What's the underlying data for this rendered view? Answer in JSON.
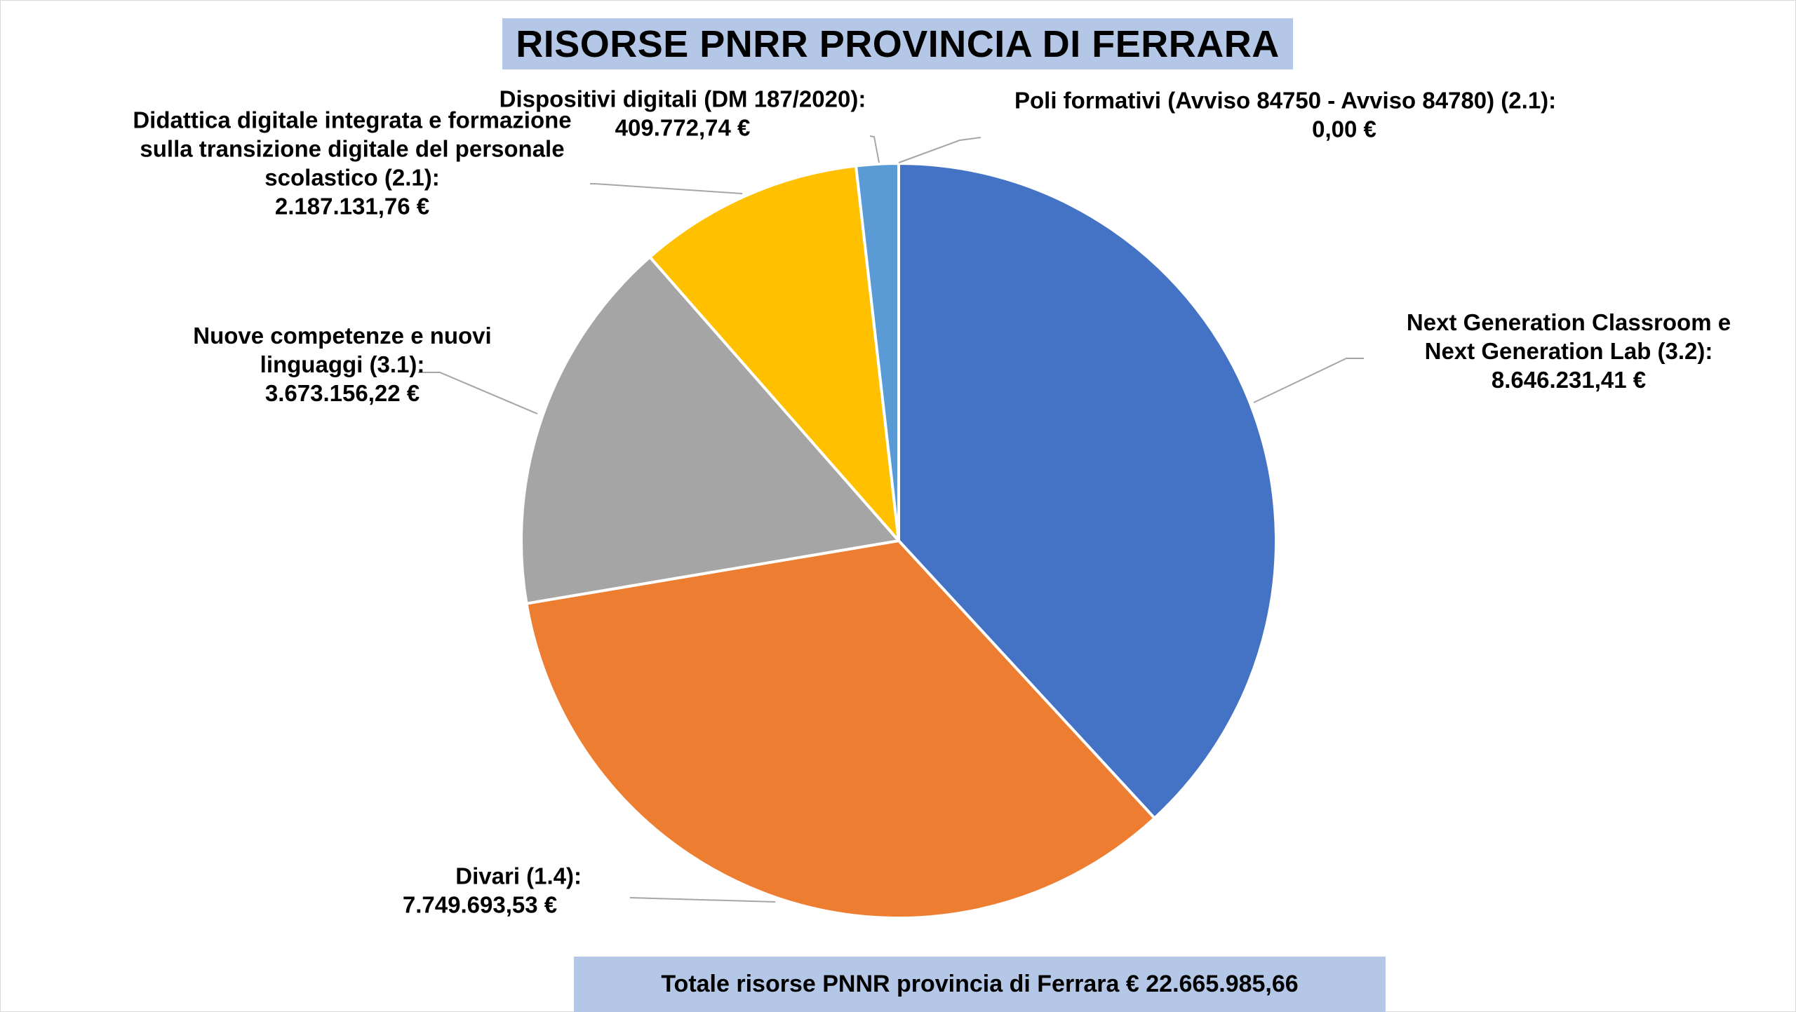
{
  "chart_data": {
    "type": "pie",
    "title": "RISORSE PNRR PROVINCIA DI FERRARA",
    "footer": "Totale risorse PNNR provincia di Ferrara € 22.665.985,66",
    "slices": [
      {
        "name": "Poli formativi (Avviso 84750 - Avviso 84780) (2.1):",
        "value": 0.0,
        "value_label": "0,00 €",
        "color": "#70ad47"
      },
      {
        "name": "Next Generation Classroom e Next Generation Lab (3.2):",
        "value": 8646231.41,
        "value_label": "8.646.231,41 €",
        "color": "#4472c4"
      },
      {
        "name": "Divari (1.4):",
        "value": 7749693.53,
        "value_label": "7.749.693,53 €",
        "color": "#ed7d31"
      },
      {
        "name": "Nuove competenze e nuovi linguaggi (3.1):",
        "value": 3673156.22,
        "value_label": "3.673.156,22 €",
        "color": "#a5a5a5"
      },
      {
        "name": "Didattica digitale integrata e formazione sulla transizione digitale del personale scolastico (2.1):",
        "value": 2187131.76,
        "value_label": "2.187.131,76 €",
        "color": "#ffc000"
      },
      {
        "name": "Dispositivi digitali (DM 187/2020):",
        "value": 409772.74,
        "value_label": "409.772,74 €",
        "color": "#5b9bd5"
      }
    ],
    "labels": [
      {
        "lines": [
          "Poli formativi (Avviso 84750 - Avviso 84780) (2.1):",
          "0,00 €"
        ]
      },
      {
        "lines": [
          "Next Generation Classroom e",
          "Next Generation Lab (3.2):",
          "8.646.231,41 €"
        ]
      },
      {
        "lines": [
          "Divari (1.4):",
          "7.749.693,53 €"
        ]
      },
      {
        "lines": [
          "Nuove competenze e nuovi",
          "linguaggi (3.1):",
          "3.673.156,22 €"
        ]
      },
      {
        "lines": [
          "Didattica digitale integrata e formazione",
          "sulla transizione digitale del personale",
          "scolastico (2.1):",
          "2.187.131,76 €"
        ]
      },
      {
        "lines": [
          "Dispositivi digitali (DM 187/2020):",
          "409.772,74 €"
        ]
      }
    ],
    "start": "12 o'clock",
    "direction": "clockwise",
    "legend": "none"
  }
}
